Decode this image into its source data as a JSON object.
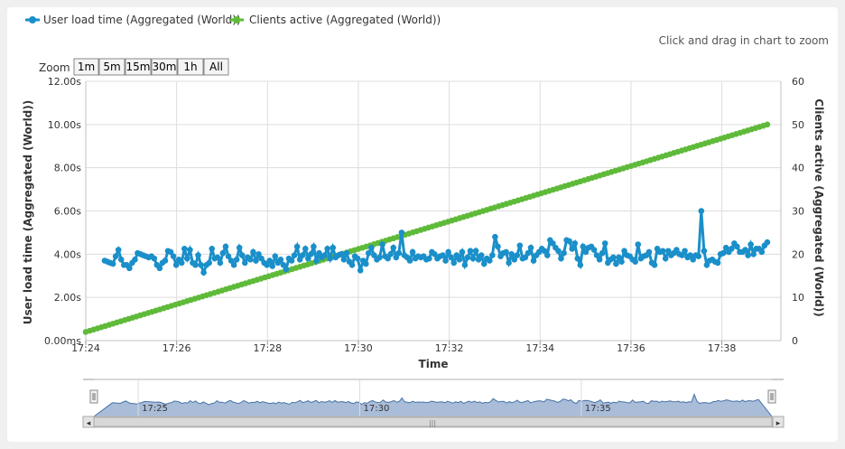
{
  "hint": "Click and drag in chart to zoom",
  "zoom": {
    "label": "Zoom",
    "buttons": [
      "1m",
      "5m",
      "15m",
      "30m",
      "1h",
      "All"
    ]
  },
  "colors": {
    "user_load": "#1a8fc9",
    "clients": "#5fba3a",
    "navigator_fill": "#a9bcd8",
    "navigator_line": "#4572a7"
  },
  "chart_data": {
    "type": "line",
    "title": "",
    "xlabel": "Time",
    "ylabel": "User load time (Aggregated (World))",
    "y2label": "Clients active (Aggregated (World))",
    "xlim": [
      "17:24:00",
      "17:39:18"
    ],
    "ylim": [
      0,
      12
    ],
    "y2lim": [
      0,
      60
    ],
    "x_ticks": [
      "17:24",
      "17:26",
      "17:28",
      "17:30",
      "17:32",
      "17:34",
      "17:36",
      "17:38"
    ],
    "y_ticks": [
      "0.00ms",
      "2.00s",
      "4.00s",
      "6.00s",
      "8.00s",
      "10.00s",
      "12.00s"
    ],
    "y2_ticks": [
      "0",
      "10",
      "20",
      "30",
      "40",
      "50",
      "60"
    ],
    "legend": "top-left",
    "grid": true,
    "series": [
      {
        "name": "User load time (Aggregated (World))",
        "axis": "left",
        "unit": "s",
        "x_start": "17:24:25",
        "x_end": "17:39:00",
        "values": [
          3.7,
          3.65,
          3.6,
          3.55,
          3.9,
          4.2,
          3.75,
          3.5,
          3.5,
          3.35,
          3.6,
          3.75,
          4.05,
          4.0,
          3.95,
          3.9,
          3.85,
          3.9,
          3.8,
          3.5,
          3.35,
          3.6,
          3.7,
          4.15,
          4.1,
          3.9,
          3.5,
          3.75,
          3.6,
          4.25,
          3.8,
          4.2,
          3.6,
          3.5,
          3.95,
          3.5,
          3.15,
          3.5,
          3.6,
          4.25,
          3.8,
          3.85,
          3.6,
          4.05,
          4.35,
          3.9,
          3.7,
          3.5,
          3.75,
          4.3,
          3.95,
          3.6,
          3.85,
          3.75,
          4.1,
          3.7,
          4.0,
          3.8,
          3.6,
          3.5,
          3.7,
          3.45,
          3.9,
          3.6,
          3.75,
          3.5,
          3.3,
          3.8,
          3.7,
          3.95,
          4.35,
          3.75,
          3.95,
          4.25,
          3.8,
          4.0,
          4.35,
          3.7,
          4.05,
          3.85,
          3.95,
          4.25,
          3.8,
          4.3,
          3.85,
          3.95,
          4.0,
          3.75,
          4.05,
          3.65,
          3.5,
          3.9,
          3.8,
          3.25,
          3.7,
          3.55,
          4.05,
          4.3,
          3.95,
          3.75,
          3.85,
          4.45,
          3.9,
          3.8,
          4.0,
          4.3,
          3.85,
          4.05,
          5.0,
          3.95,
          3.85,
          3.7,
          4.1,
          3.8,
          3.9,
          3.85,
          3.9,
          3.75,
          3.8,
          4.1,
          4.0,
          3.8,
          3.9,
          3.95,
          3.7,
          4.1,
          3.85,
          3.6,
          3.95,
          3.75,
          4.1,
          3.5,
          3.85,
          4.15,
          3.8,
          4.15,
          3.75,
          3.95,
          3.55,
          3.8,
          3.7,
          3.95,
          4.8,
          4.35,
          3.9,
          4.05,
          4.1,
          3.6,
          4.0,
          3.75,
          3.95,
          4.4,
          3.8,
          3.85,
          4.05,
          4.3,
          3.7,
          3.95,
          4.1,
          4.25,
          4.15,
          3.95,
          4.65,
          4.5,
          4.3,
          4.15,
          3.8,
          4.05,
          4.65,
          4.6,
          4.25,
          4.5,
          3.8,
          3.5,
          4.35,
          4.1,
          4.3,
          4.35,
          4.2,
          3.95,
          3.75,
          4.05,
          4.5,
          3.6,
          3.75,
          3.85,
          3.55,
          3.85,
          3.65,
          4.15,
          3.95,
          3.9,
          3.75,
          3.65,
          4.45,
          3.8,
          3.9,
          3.95,
          4.1,
          3.6,
          3.5,
          4.25,
          4.1,
          4.15,
          3.8,
          4.15,
          3.95,
          4.05,
          4.2,
          4.0,
          3.95,
          4.15,
          3.85,
          3.95,
          3.75,
          3.95,
          3.9,
          6.0,
          4.15,
          3.5,
          3.7,
          3.75,
          3.65,
          3.6,
          4.0,
          4.05,
          4.3,
          4.1,
          4.25,
          4.5,
          4.35,
          4.1,
          4.1,
          4.2,
          3.95,
          4.45,
          4.0,
          4.25,
          4.25,
          4.1,
          4.4,
          4.55
        ]
      },
      {
        "name": "Clients active (Aggregated (World))",
        "axis": "right",
        "x_start": "17:24:00",
        "x_end": "17:39:00",
        "y_start": 2,
        "y_end": 50
      }
    ]
  },
  "navigator": {
    "ticks": [
      "17:25",
      "17:30",
      "17:35"
    ],
    "x_start": "17:24:00",
    "x_end": "17:39:18",
    "scroll_left": "◂",
    "scroll_right": "▸",
    "scroll_grip": "|||"
  }
}
